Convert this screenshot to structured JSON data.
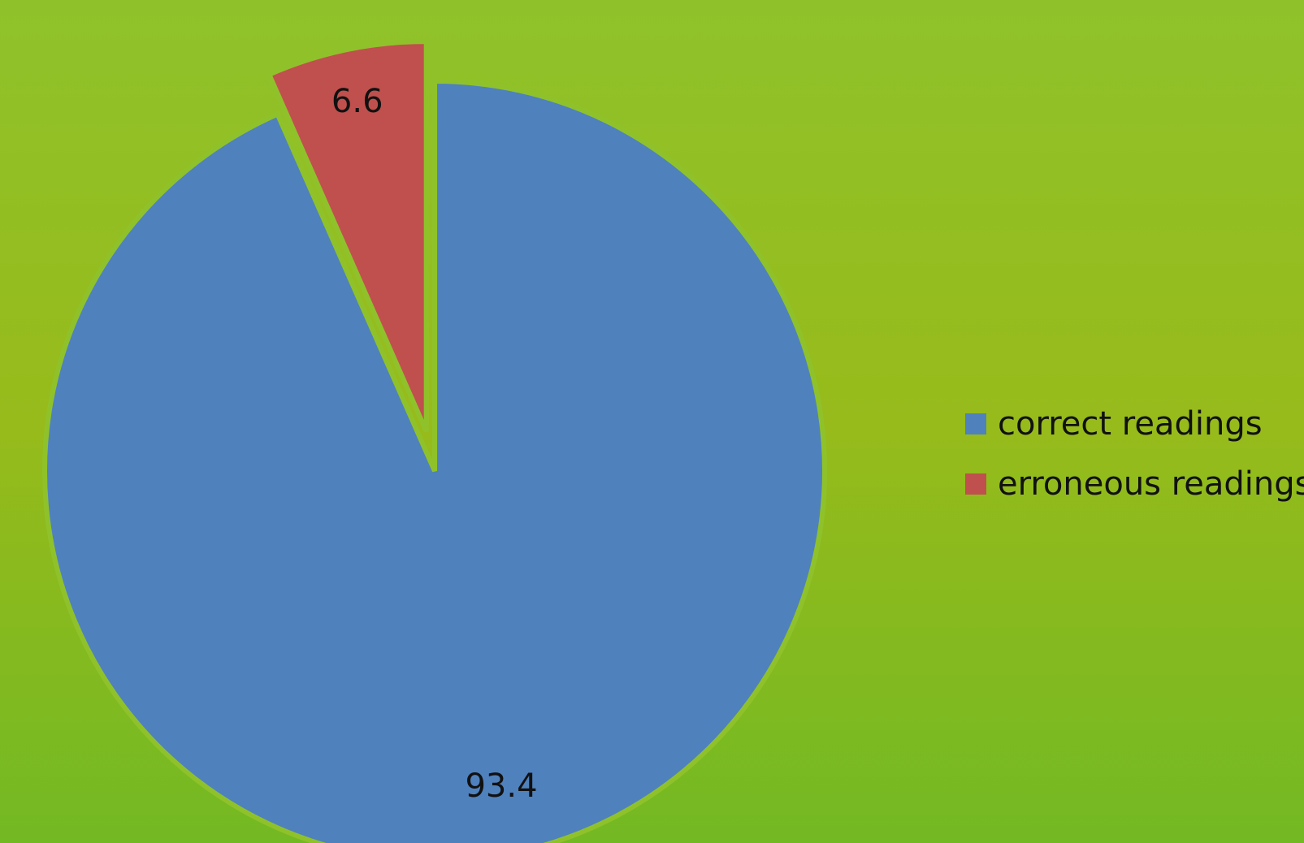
{
  "chart_data": {
    "type": "pie",
    "categories": [
      "correct readings",
      "erroneous readings"
    ],
    "values": [
      93.4,
      6.6
    ],
    "colors": [
      "#4f81bd",
      "#c0504d"
    ],
    "exploded": [
      false,
      true
    ],
    "data_labels": [
      "93.4",
      "6.6"
    ],
    "legend_position": "right",
    "background": "#8fc22a"
  }
}
